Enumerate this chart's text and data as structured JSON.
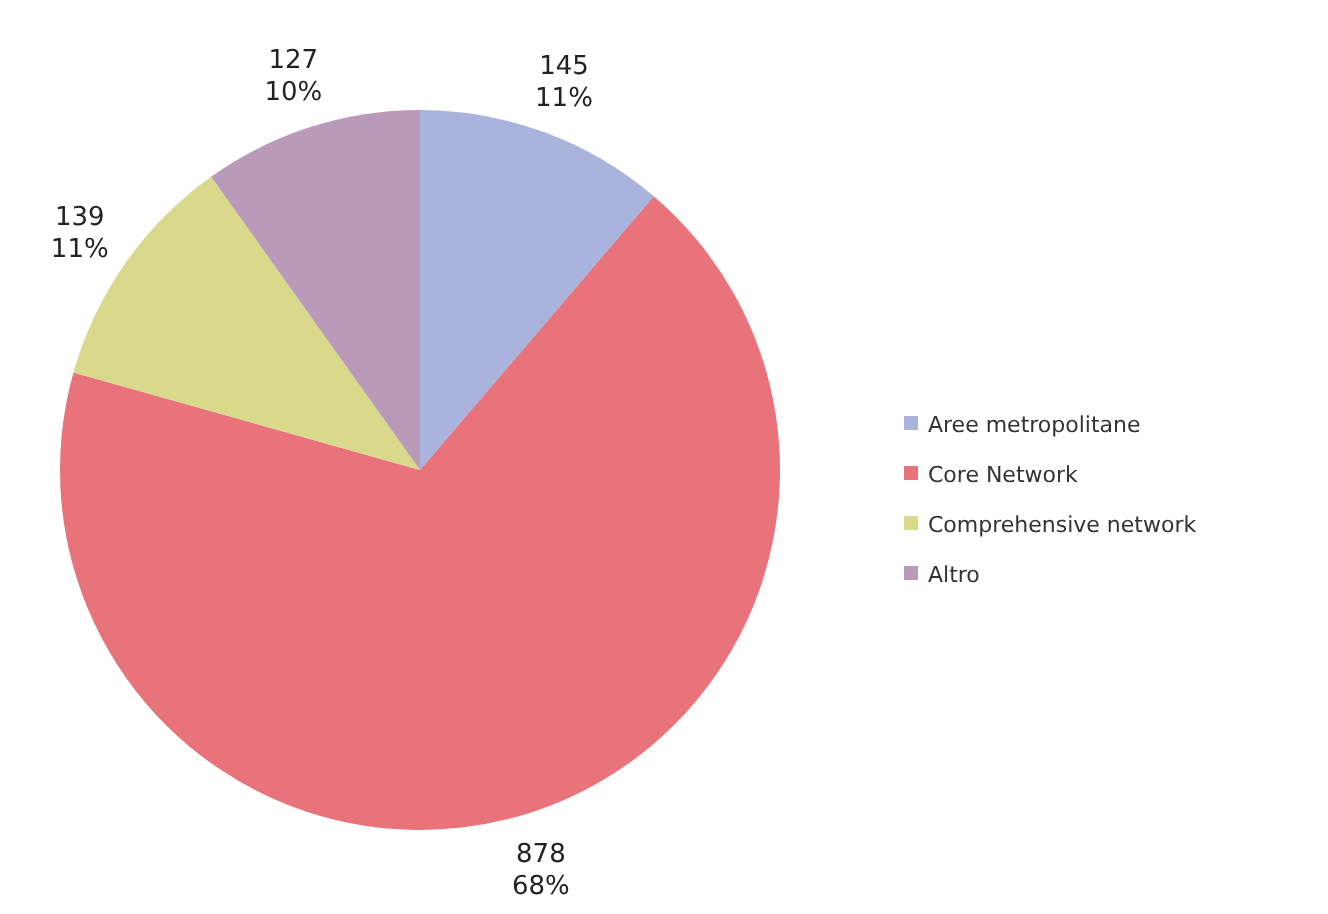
{
  "chart_data": {
    "type": "pie",
    "categories": [
      "Aree metropolitane",
      "Core Network",
      "Comprehensive network",
      "Altro"
    ],
    "values": [
      145,
      878,
      139,
      127
    ],
    "colors": [
      "#a9b3dc",
      "#e8737b",
      "#d9d98c",
      "#b99ab9"
    ],
    "value_labels": [
      "145\n11%",
      "878\n68%",
      "139\n11%",
      "127\n10%"
    ],
    "legend": "right"
  }
}
